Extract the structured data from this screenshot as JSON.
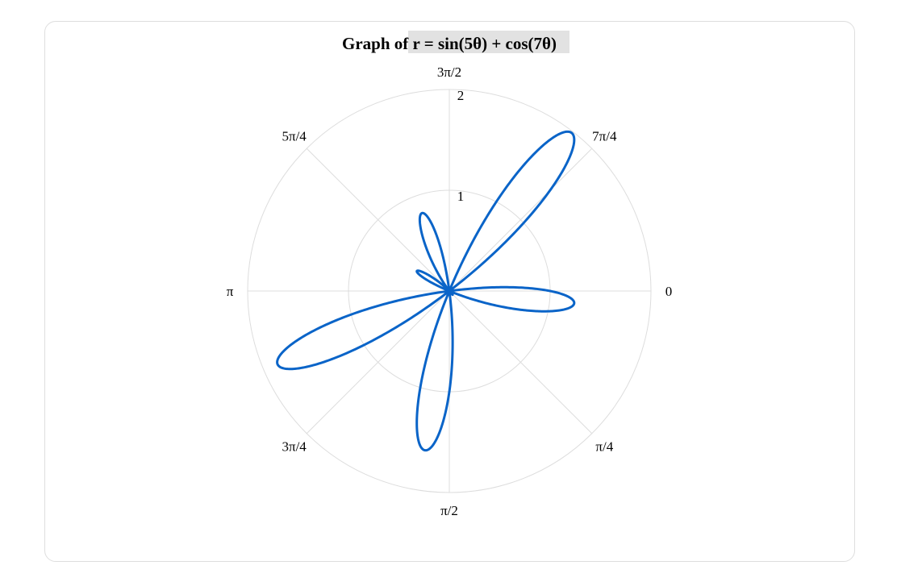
{
  "chart_data": {
    "type": "polar-line",
    "title_prefix": "Graph of ",
    "title_expr": "r = sin(5θ) + cos(7θ)",
    "function": "r = sin(5θ) + cos(7θ)",
    "theta_range": [
      0,
      6.283185307
    ],
    "r_range": [
      0,
      2
    ],
    "r_ticks": [
      "1",
      "2"
    ],
    "angle_tick_labels": [
      "0",
      "π/4",
      "π/2",
      "3π/4",
      "π",
      "5π/4",
      "3π/2",
      "7π/4"
    ],
    "angle_direction": "clockwise, 0 at right",
    "grid": true,
    "series": [
      {
        "color": "#0a64c8",
        "expression": "sin(5θ) + cos(7θ)"
      }
    ]
  }
}
